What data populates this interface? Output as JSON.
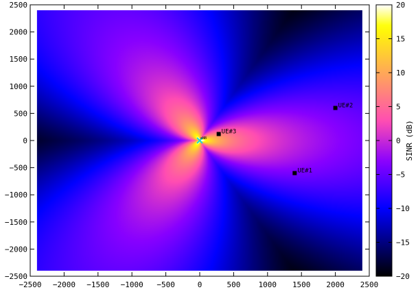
{
  "chart_data": {
    "type": "heatmap",
    "title": "",
    "xlabel": "",
    "ylabel": "",
    "xlim": [
      -2500,
      2500
    ],
    "ylim": [
      -2500,
      2500
    ],
    "data_extent_x": [
      -2400,
      2400
    ],
    "data_extent_y": [
      -2400,
      2400
    ],
    "x_ticks": [
      -2500,
      -2000,
      -1500,
      -1000,
      -500,
      0,
      500,
      1000,
      1500,
      2000,
      2500
    ],
    "y_ticks": [
      -2500,
      -2000,
      -1500,
      -1000,
      -500,
      0,
      500,
      1000,
      1500,
      2000,
      2500
    ],
    "colorbar": {
      "label": "SINR (dB)",
      "range": [
        -20,
        20
      ],
      "ticks": [
        -20,
        -15,
        -10,
        -5,
        0,
        5,
        10,
        15,
        20
      ],
      "colormap": "gnuplot-pm3d-rgbformulae-30-31-32"
    },
    "enb": {
      "x": 0,
      "y": 0,
      "label": "eNB",
      "color": "#1fd8d8"
    },
    "ues": [
      {
        "label": "UE#1",
        "x": 1400,
        "y": -600
      },
      {
        "label": "UE#2",
        "x": 2000,
        "y": 600
      },
      {
        "label": "UE#3",
        "x": 280,
        "y": 120
      }
    ]
  }
}
